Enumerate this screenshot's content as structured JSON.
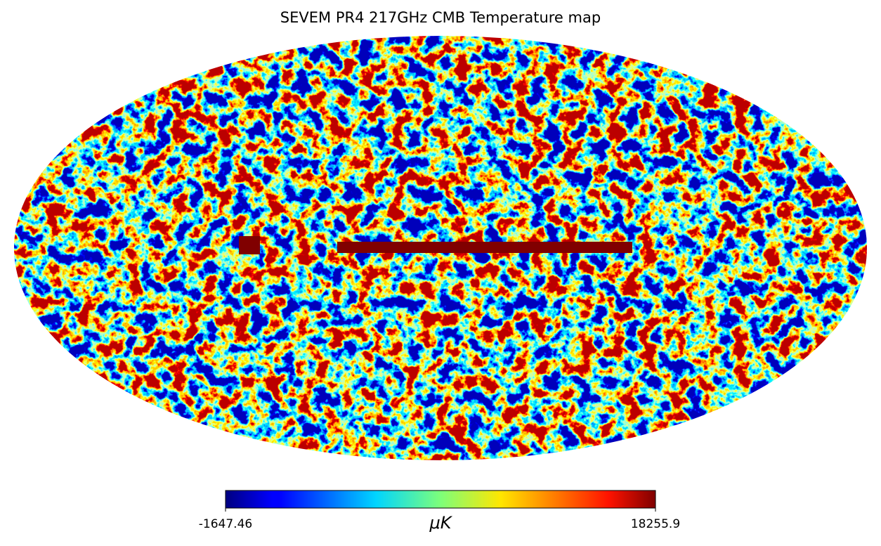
{
  "chart_data": {
    "type": "mollweide",
    "title": "SEVEM PR4 217GHz CMB Temperature map",
    "colorbar": {
      "cmap": "jet",
      "lim": [
        -1647.46,
        18255.9
      ],
      "ticks": [
        -1647.46,
        18255.9
      ],
      "label": "μK"
    }
  }
}
